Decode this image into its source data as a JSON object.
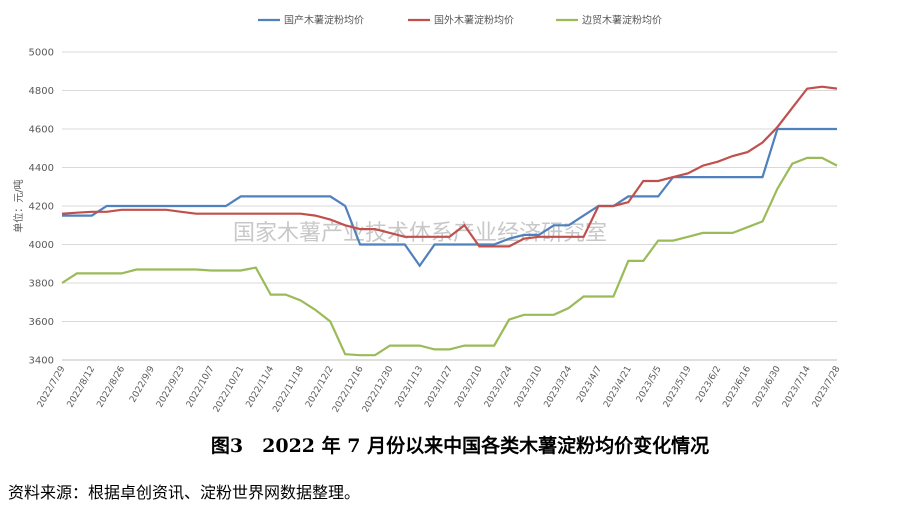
{
  "chart_data": {
    "type": "line",
    "title": "图3　2022 年 7 月份以来中国各类木薯淀粉均价变化情况",
    "source": "资料来源：根据卓创资讯、淀粉世界网数据整理。",
    "watermark": "国家木薯产业技术体系产业经济研究室",
    "y_label": "单位：元/吨",
    "categories": [
      "2022/7/29",
      null,
      "2022/8/12",
      null,
      "2022/8/26",
      null,
      "2022/9/9",
      null,
      "2022/9/23",
      null,
      "2022/10/7",
      null,
      "2022/10/21",
      null,
      "2022/11/4",
      null,
      "2022/11/18",
      null,
      "2022/12/2",
      null,
      "2022/12/16",
      null,
      "2022/12/30",
      null,
      "2023/1/13",
      null,
      "2023/1/27",
      null,
      "2023/2/10",
      null,
      "2023/2/24",
      null,
      "2023/3/10",
      null,
      "2023/3/24",
      null,
      "2023/4/7",
      null,
      "2023/4/21",
      null,
      "2023/5/5",
      null,
      "2023/5/19",
      null,
      "2023/6/2",
      null,
      "2023/6/16",
      null,
      "2023/6/30",
      null,
      "2023/7/14",
      null,
      "2023/7/28"
    ],
    "series": [
      {
        "name": "国产木薯淀粉均价",
        "color": "#4f81bd",
        "values": [
          4150,
          4150,
          4150,
          4200,
          4200,
          4200,
          4200,
          4200,
          4200,
          4200,
          4200,
          4200,
          4250,
          4250,
          4250,
          4250,
          4250,
          4250,
          4250,
          4200,
          4000,
          4000,
          4000,
          4000,
          3890,
          4000,
          4000,
          4000,
          4000,
          4000,
          4030,
          4050,
          4050,
          4100,
          4100,
          4150,
          4200,
          4200,
          4250,
          4250,
          4250,
          4350,
          4350,
          4350,
          4350,
          4350,
          4350,
          4350,
          4600,
          4600,
          4600,
          4600,
          4600
        ]
      },
      {
        "name": "国外木薯淀粉均价",
        "color": "#c0504d",
        "values": [
          4160,
          4165,
          4170,
          4170,
          4180,
          4180,
          4180,
          4180,
          4170,
          4160,
          4160,
          4160,
          4160,
          4160,
          4160,
          4160,
          4160,
          4150,
          4130,
          4100,
          4080,
          4080,
          4060,
          4040,
          4040,
          4040,
          4040,
          4100,
          3990,
          3990,
          3990,
          4030,
          4040,
          4040,
          4040,
          4040,
          4200,
          4200,
          4220,
          4330,
          4330,
          4350,
          4370,
          4410,
          4430,
          4460,
          4480,
          4530,
          4610,
          4710,
          4810,
          4820,
          4810
        ]
      },
      {
        "name": "边贸木薯淀粉均价",
        "color": "#9bbb59",
        "values": [
          3800,
          3850,
          3850,
          3850,
          3850,
          3870,
          3870,
          3870,
          3870,
          3870,
          3865,
          3865,
          3865,
          3880,
          3740,
          3740,
          3710,
          3660,
          3600,
          3430,
          3425,
          3425,
          3475,
          3475,
          3475,
          3455,
          3455,
          3475,
          3475,
          3475,
          3610,
          3635,
          3635,
          3635,
          3670,
          3730,
          3730,
          3730,
          3915,
          3915,
          4020,
          4020,
          4040,
          4060,
          4060,
          4060,
          4090,
          4120,
          4290,
          4420,
          4450,
          4450,
          4410
        ]
      }
    ],
    "ylim": [
      3400,
      5000
    ],
    "yticks": [
      3400,
      3600,
      3800,
      4000,
      4200,
      4400,
      4600,
      4800,
      5000
    ],
    "grid": true
  }
}
